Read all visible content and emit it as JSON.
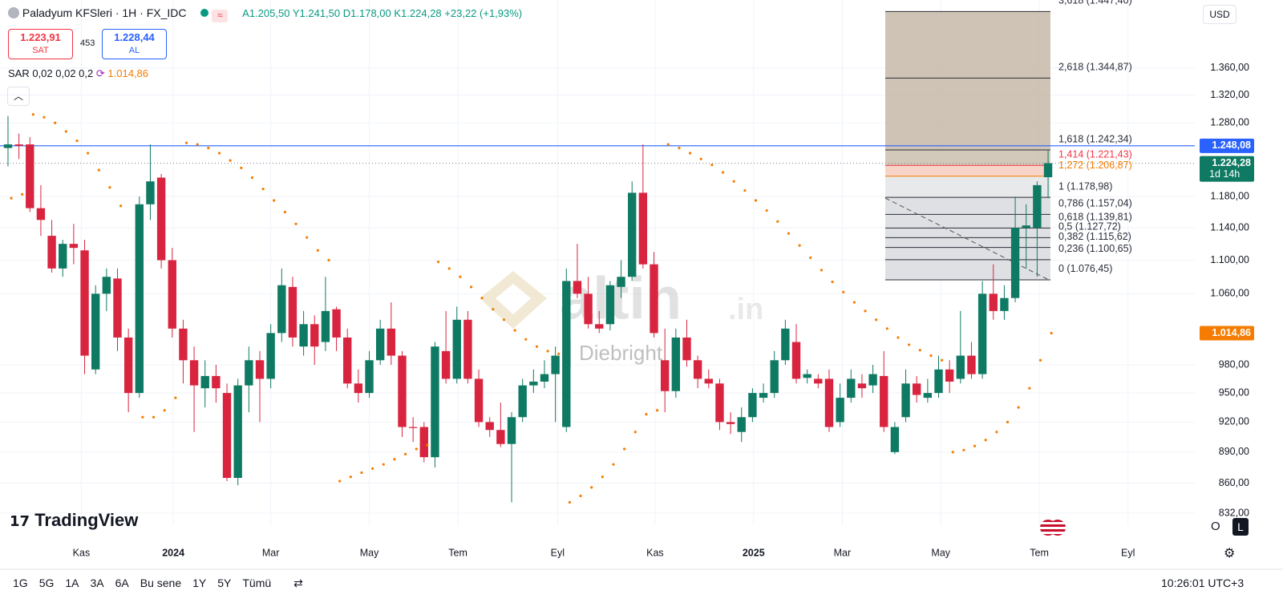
{
  "header": {
    "symbol": "Paladyum KFSleri · 1H · FX_IDC",
    "open": "A1.205,50",
    "high": "Y1.241,50",
    "low": "D1.178,00",
    "close": "K1.224,28",
    "change": "+23,22 (+1,93%)",
    "sell_price": "1.223,91",
    "sell_label": "SAT",
    "spread": "453",
    "buy_price": "1.228,44",
    "buy_label": "AL",
    "indicator": "SAR 0,02 0,02 0,2",
    "indicator_value": "1.014,86",
    "currency": "USD"
  },
  "chart_data": {
    "type": "candlestick",
    "log_scale": true,
    "grid": true,
    "up_color": "#0f7a63",
    "down_color": "#d8243f",
    "sar_color": "#f57c00",
    "xlim": [
      -0.73,
      108.4
    ],
    "xticks": [
      {
        "value": 6.7,
        "label": "Kas"
      },
      {
        "value": 15.1,
        "label": "2024"
      },
      {
        "value": 24,
        "label": "Mar"
      },
      {
        "value": 33,
        "label": "May"
      },
      {
        "value": 41.1,
        "label": "Tem"
      },
      {
        "value": 50.2,
        "label": "Eyl"
      },
      {
        "value": 59.1,
        "label": "Kas"
      },
      {
        "value": 68.1,
        "label": "2025"
      },
      {
        "value": 76.2,
        "label": "Mar"
      },
      {
        "value": 85.2,
        "label": "May"
      },
      {
        "value": 94.2,
        "label": "Tem"
      },
      {
        "value": 102.3,
        "label": "Eyl"
      }
    ],
    "ylim": [
      821,
      1466
    ],
    "yticks": [
      {
        "value": 1360,
        "label": "1.360,00"
      },
      {
        "value": 1320,
        "label": "1.320,00"
      },
      {
        "value": 1280,
        "label": "1.280,00"
      },
      {
        "value": 1180,
        "label": "1.180,00"
      },
      {
        "value": 1140,
        "label": "1.140,00"
      },
      {
        "value": 1100,
        "label": "1.100,00"
      },
      {
        "value": 1060,
        "label": "1.060,00"
      },
      {
        "value": 980,
        "label": "980,00"
      },
      {
        "value": 950,
        "label": "950,00"
      },
      {
        "value": 920,
        "label": "920,00"
      },
      {
        "value": 890,
        "label": "890,00"
      },
      {
        "value": 860,
        "label": "860,00"
      },
      {
        "value": 832,
        "label": "832,00"
      }
    ],
    "candles": [
      [
        1245,
        1290,
        1220,
        1250
      ],
      [
        1250,
        1265,
        1230,
        1248
      ],
      [
        1250,
        1260,
        1160,
        1165
      ],
      [
        1165,
        1195,
        1130,
        1150
      ],
      [
        1130,
        1150,
        1085,
        1090
      ],
      [
        1090,
        1125,
        1080,
        1120
      ],
      [
        1120,
        1145,
        1095,
        1115
      ],
      [
        1112,
        1125,
        970,
        990
      ],
      [
        975,
        1070,
        970,
        1060
      ],
      [
        1060,
        1090,
        1040,
        1080
      ],
      [
        1078,
        1090,
        995,
        1010
      ],
      [
        1010,
        1020,
        930,
        950
      ],
      [
        950,
        1180,
        945,
        1170
      ],
      [
        1170,
        1250,
        1150,
        1200
      ],
      [
        1205,
        1210,
        1090,
        1100
      ],
      [
        1100,
        1115,
        1010,
        1020
      ],
      [
        1020,
        1030,
        960,
        985
      ],
      [
        985,
        1000,
        910,
        958
      ],
      [
        955,
        985,
        935,
        968
      ],
      [
        968,
        980,
        940,
        955
      ],
      [
        950,
        960,
        862,
        865
      ],
      [
        865,
        965,
        858,
        958
      ],
      [
        958,
        1000,
        930,
        985
      ],
      [
        985,
        995,
        920,
        965
      ],
      [
        965,
        1025,
        955,
        1015
      ],
      [
        1015,
        1090,
        1005,
        1070
      ],
      [
        1068,
        1080,
        1000,
        1010
      ],
      [
        1000,
        1040,
        990,
        1025
      ],
      [
        1025,
        1035,
        980,
        1000
      ],
      [
        1005,
        1080,
        995,
        1040
      ],
      [
        1042,
        1045,
        995,
        1010
      ],
      [
        1010,
        1020,
        955,
        960
      ],
      [
        960,
        975,
        940,
        950
      ],
      [
        950,
        995,
        945,
        985
      ],
      [
        985,
        1030,
        980,
        1020
      ],
      [
        1020,
        1050,
        980,
        990
      ],
      [
        990,
        995,
        905,
        915
      ],
      [
        915,
        925,
        900,
        914
      ],
      [
        915,
        920,
        880,
        885
      ],
      [
        885,
        1005,
        875,
        1000
      ],
      [
        995,
        1040,
        960,
        965
      ],
      [
        965,
        1045,
        960,
        1030
      ],
      [
        1030,
        1040,
        960,
        965
      ],
      [
        965,
        975,
        915,
        920
      ],
      [
        920,
        925,
        905,
        912
      ],
      [
        912,
        940,
        895,
        898
      ],
      [
        898,
        930,
        842,
        925
      ],
      [
        925,
        965,
        920,
        958
      ],
      [
        958,
        975,
        950,
        962
      ],
      [
        962,
        985,
        955,
        970
      ],
      [
        970,
        1000,
        920,
        990
      ],
      [
        915,
        1090,
        910,
        1075
      ],
      [
        1075,
        1120,
        1055,
        1060
      ],
      [
        1060,
        1080,
        1020,
        1025
      ],
      [
        1025,
        1040,
        1015,
        1020
      ],
      [
        1025,
        1075,
        1018,
        1070
      ],
      [
        1068,
        1100,
        1055,
        1080
      ],
      [
        1080,
        1200,
        1075,
        1185
      ],
      [
        1185,
        1250,
        1090,
        1095
      ],
      [
        1095,
        1110,
        1010,
        1015
      ],
      [
        985,
        1020,
        930,
        952
      ],
      [
        952,
        1020,
        945,
        1010
      ],
      [
        1010,
        1030,
        978,
        985
      ],
      [
        985,
        990,
        955,
        965
      ],
      [
        965,
        975,
        955,
        960
      ],
      [
        960,
        965,
        912,
        920
      ],
      [
        920,
        930,
        908,
        918
      ],
      [
        910,
        935,
        900,
        925
      ],
      [
        925,
        955,
        920,
        950
      ],
      [
        945,
        960,
        940,
        950
      ],
      [
        950,
        995,
        945,
        985
      ],
      [
        985,
        1030,
        980,
        1020
      ],
      [
        1005,
        1025,
        960,
        965
      ],
      [
        966,
        975,
        960,
        970
      ],
      [
        965,
        970,
        955,
        960
      ],
      [
        965,
        975,
        910,
        915
      ],
      [
        920,
        960,
        915,
        945
      ],
      [
        945,
        975,
        940,
        965
      ],
      [
        960,
        970,
        945,
        955
      ],
      [
        958,
        980,
        950,
        970
      ],
      [
        968,
        995,
        910,
        915
      ],
      [
        890,
        920,
        888,
        915
      ],
      [
        925,
        975,
        920,
        960
      ],
      [
        960,
        968,
        940,
        948
      ],
      [
        945,
        965,
        940,
        950
      ],
      [
        950,
        990,
        945,
        975
      ],
      [
        975,
        985,
        950,
        962
      ],
      [
        965,
        1040,
        960,
        990
      ],
      [
        990,
        1005,
        965,
        970
      ],
      [
        970,
        1075,
        965,
        1060
      ],
      [
        1060,
        1095,
        1030,
        1040
      ],
      [
        1040,
        1070,
        1030,
        1055
      ],
      [
        1055,
        1180,
        1050,
        1140
      ],
      [
        1140,
        1170,
        1090,
        1143
      ],
      [
        1140,
        1200,
        1080,
        1195
      ],
      [
        1205.5,
        1241.5,
        1178,
        1224.28
      ]
    ],
    "sar": [
      1178,
      1183,
      1292,
      1288,
      1280,
      1268,
      1255,
      1238,
      1215,
      1192,
      1168,
      null,
      925,
      925,
      932,
      945,
      1252,
      1250,
      1245,
      1238,
      1228,
      1218,
      1205,
      1190,
      1175,
      1160,
      1145,
      1128,
      1112,
      1100,
      862,
      866,
      870,
      874,
      878,
      883,
      888,
      893,
      897,
      1098,
      1090,
      1080,
      1068,
      1055,
      1042,
      1030,
      1018,
      1008,
      1000,
      995,
      992,
      842,
      848,
      856,
      866,
      878,
      893,
      910,
      928,
      932,
      1250,
      1245,
      1238,
      1230,
      1222,
      1212,
      1200,
      1188,
      1175,
      1162,
      1148,
      1133,
      1118,
      1103,
      1088,
      1074,
      1062,
      1050,
      1040,
      1030,
      1020,
      1010,
      1002,
      996,
      990,
      985,
      890,
      892,
      896,
      902,
      910,
      920,
      935,
      955,
      985,
      1014.86
    ],
    "price_lines": [
      {
        "value": 1248.08,
        "label": "1.248,08",
        "color": "#2962ff"
      },
      {
        "value": 1224.28,
        "label": "1.224,28",
        "sublabel": "1d 14h",
        "color": "#0f7a63"
      },
      {
        "value": 1014.86,
        "label": "1.014,86",
        "color": "#f57c00"
      }
    ],
    "fib": {
      "levels": [
        {
          "value": 1447.4,
          "label": "3,618 (1.447,40)"
        },
        {
          "value": 1344.87,
          "label": "2,618 (1.344,87)"
        },
        {
          "value": 1242.34,
          "label": "1,618 (1.242,34)"
        },
        {
          "value": 1221.43,
          "label": "1,414 (1.221,43)",
          "color": "#f23645"
        },
        {
          "value": 1206.87,
          "label": "1,272 (1.206,87)",
          "color": "#f57c00"
        },
        {
          "value": 1178.98,
          "label": "1 (1.178,98)"
        },
        {
          "value": 1157.04,
          "label": "0,786 (1.157,04)"
        },
        {
          "value": 1139.81,
          "label": "0,618 (1.139,81)"
        },
        {
          "value": 1127.72,
          "label": "0,5 (1.127,72)"
        },
        {
          "value": 1115.62,
          "label": "0,382 (1.115,62)"
        },
        {
          "value": 1100.65,
          "label": "0,236 (1.100,65)"
        },
        {
          "value": 1076.45,
          "label": "0 (1.076,45)"
        }
      ]
    }
  },
  "watermark": {
    "brand": "altin",
    "suffix": ".in",
    "author": "Diebright"
  },
  "footer": {
    "logo": "TradingView",
    "ranges": [
      "1G",
      "5G",
      "1A",
      "3A",
      "6A",
      "Bu sene",
      "1Y",
      "5Y",
      "Tümü"
    ],
    "time": "10:26:01 UTC+3",
    "opt_o": "O",
    "opt_l": "L"
  }
}
